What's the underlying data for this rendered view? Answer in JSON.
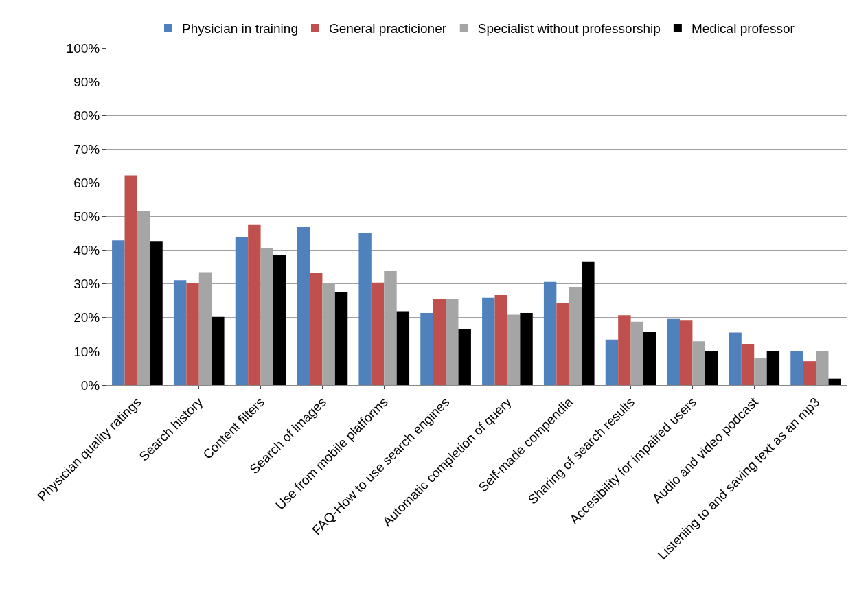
{
  "chart_data": {
    "type": "bar",
    "categories": [
      "Physician quality ratings",
      "Search history",
      "Content filters",
      "Search of images",
      "Use from mobile platforms",
      "FAQ-How to use search engines",
      "Automatic completion of query",
      "Self-made compendia",
      "Sharing of search results",
      "Accesibility for impaired users",
      "Audio and video podcast",
      "Listening to and saving text as an mp3"
    ],
    "series": [
      {
        "name": "Physician in training",
        "color": "#4f81bd",
        "values": [
          42.9,
          31.1,
          43.8,
          46.9,
          45.1,
          21.4,
          25.9,
          30.6,
          13.5,
          19.6,
          15.6,
          10.0
        ]
      },
      {
        "name": "General practicioner",
        "color": "#c0504d",
        "values": [
          62.2,
          30.3,
          47.5,
          33.2,
          30.4,
          25.6,
          26.7,
          24.3,
          20.7,
          19.3,
          12.2,
          7.1
        ]
      },
      {
        "name": "Specialist without professorship",
        "color": "#a5a5a5",
        "values": [
          51.7,
          33.5,
          40.6,
          30.3,
          33.8,
          25.6,
          20.9,
          29.1,
          18.8,
          13.0,
          8.0,
          10.0
        ]
      },
      {
        "name": "Medical professor",
        "color": "#000000",
        "values": [
          42.7,
          20.2,
          38.7,
          27.5,
          21.9,
          16.7,
          21.4,
          36.7,
          15.9,
          10.0,
          10.0,
          1.9
        ]
      }
    ],
    "ylim": [
      0,
      100
    ],
    "yticks": [
      {
        "value": 0,
        "label": "0%"
      },
      {
        "value": 10,
        "label": "10%"
      },
      {
        "value": 20,
        "label": "20%"
      },
      {
        "value": 30,
        "label": "30%"
      },
      {
        "value": 40,
        "label": "40%"
      },
      {
        "value": 50,
        "label": "50%"
      },
      {
        "value": 60,
        "label": "60%"
      },
      {
        "value": 70,
        "label": "70%"
      },
      {
        "value": 80,
        "label": "80%"
      },
      {
        "value": 90,
        "label": "90%"
      },
      {
        "value": 100,
        "label": "100%"
      }
    ],
    "grid": "y",
    "legend": "top"
  }
}
